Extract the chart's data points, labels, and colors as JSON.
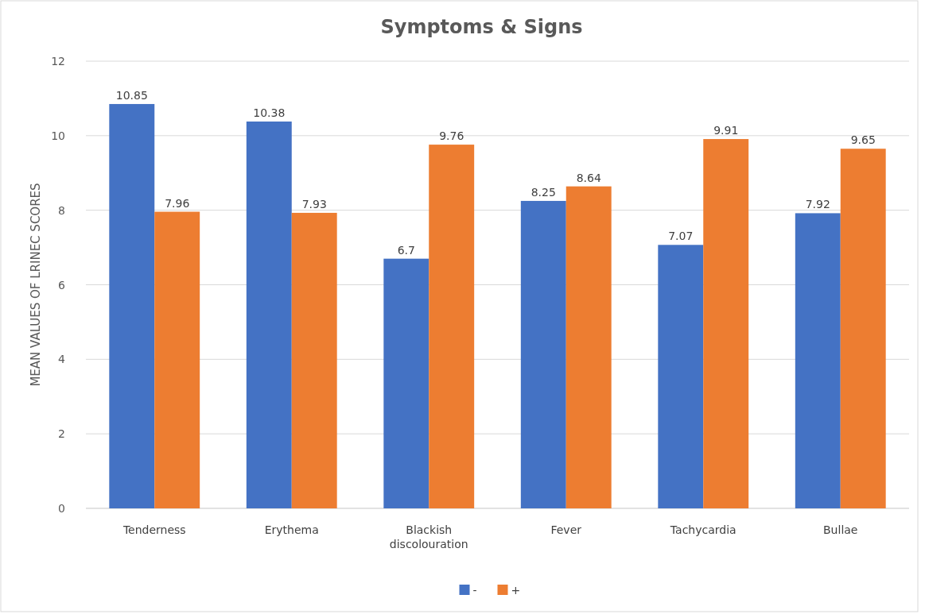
{
  "chart_data": {
    "type": "bar",
    "title": "Symptoms & Signs",
    "ylabel": "MEAN VALUES OF LRINEC SCORES",
    "categories": [
      "Tenderness",
      "Erythema",
      "Blackish discolouration",
      "Fever",
      "Tachycardia",
      "Bullae"
    ],
    "series": [
      {
        "name": "-",
        "color": "#4472c4",
        "values": [
          10.85,
          10.38,
          6.7,
          8.25,
          7.07,
          7.92
        ]
      },
      {
        "name": "+",
        "color": "#ed7d31",
        "values": [
          7.96,
          7.93,
          9.76,
          8.64,
          9.91,
          9.65
        ]
      }
    ],
    "ylim": [
      0,
      12
    ],
    "yticks": [
      0,
      2,
      4,
      6,
      8,
      10,
      12
    ],
    "grid": "y",
    "legend": "bottom",
    "data_labels": true
  }
}
